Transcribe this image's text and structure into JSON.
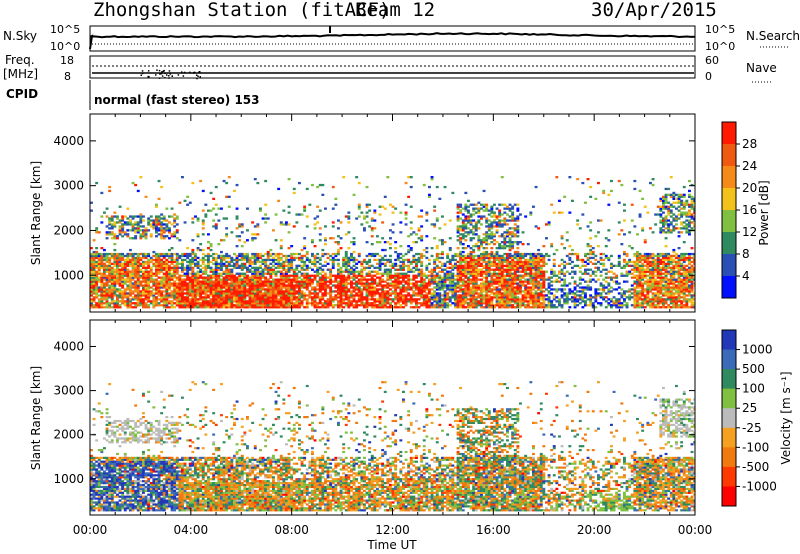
{
  "header": {
    "station": "Zhongshan Station (fitACF)",
    "beam": "Beam 12",
    "date": "30/Apr/2015"
  },
  "sky_panel": {
    "left_label": "N.Sky",
    "left_ticks": [
      "10^5",
      "10^0"
    ],
    "right_ticks": [
      "10^5",
      "10^0"
    ],
    "right_label": "N.Search"
  },
  "freq_panel": {
    "left_label_1": "Freq.",
    "left_label_2": "[MHz]",
    "left_ticks": [
      "18",
      "8"
    ],
    "right_ticks": [
      "60",
      "0"
    ],
    "right_label": "Nave"
  },
  "cpid": {
    "label": "CPID",
    "value": "normal (fast stereo) 153"
  },
  "chart_data": [
    {
      "type": "heatmap",
      "panel": "power",
      "ylabel": "Slant Range [km]",
      "y_ticks": [
        "1000",
        "2000",
        "3000",
        "4000"
      ],
      "ylim": [
        180,
        4600
      ],
      "x_ticks": [
        "00:00",
        "04:00",
        "08:00",
        "12:00",
        "16:00",
        "20:00",
        "00:00"
      ],
      "colorbar_label": "Power [dB]",
      "colorbar_ticks": [
        "4",
        "8",
        "12",
        "16",
        "20",
        "24",
        "28"
      ],
      "colorbar_colors": [
        "#0010ff",
        "#2a4fb5",
        "#2f8a5f",
        "#7fc040",
        "#f2c21a",
        "#f58a1a",
        "#f05a10",
        "#ff1a00"
      ],
      "grid": false
    },
    {
      "type": "heatmap",
      "panel": "velocity",
      "ylabel": "Slant Range [km]",
      "y_ticks": [
        "1000",
        "2000",
        "3000",
        "4000"
      ],
      "ylim": [
        180,
        4600
      ],
      "x_ticks": [
        "00:00",
        "04:00",
        "08:00",
        "12:00",
        "16:00",
        "20:00",
        "00:00"
      ],
      "xlabel": "Time UT",
      "colorbar_label": "Velocity [m s⁻¹]",
      "colorbar_ticks": [
        "1000",
        "500",
        "100",
        "25",
        "-25",
        "-100",
        "-500",
        "-1000"
      ],
      "colorbar_colors": [
        "#2238b8",
        "#3a6ab8",
        "#2f8a5f",
        "#7fc040",
        "#bbbbbb",
        "#f5a020",
        "#f07a10",
        "#ff3a00",
        "#ff0000"
      ],
      "grid": false
    }
  ]
}
